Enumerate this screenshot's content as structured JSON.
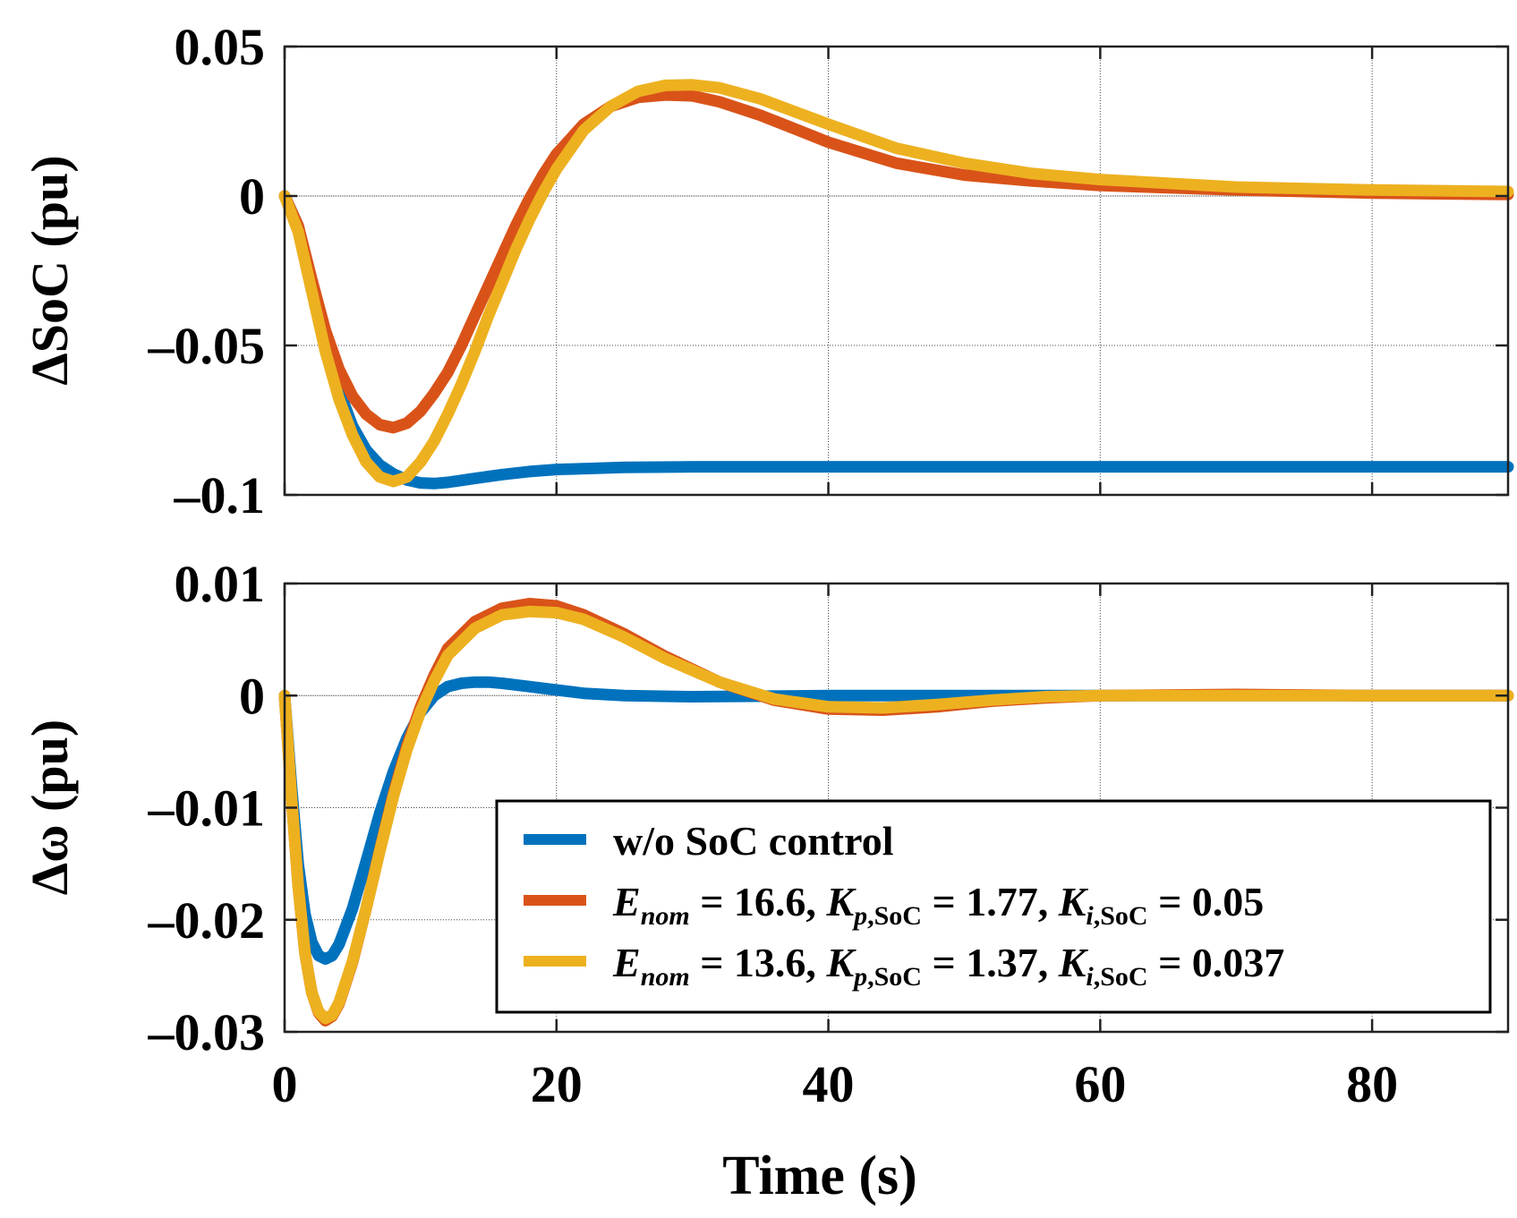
{
  "chart_data": [
    {
      "type": "line",
      "title": "",
      "ylabel": "ΔSoC (pu)",
      "xlabel": "",
      "xlim": [
        0,
        90
      ],
      "ylim": [
        -0.1,
        0.05
      ],
      "yticks": [
        0.05,
        0,
        -0.05,
        -0.1
      ],
      "ytick_labels": [
        "0.05",
        "0",
        "–0.05",
        "–0.1"
      ],
      "xticks": [
        0,
        20,
        40,
        60,
        80
      ],
      "grid": true,
      "series": [
        {
          "name": "w/o SoC control",
          "color": "#0072BD",
          "points": [
            [
              0,
              0
            ],
            [
              1,
              -0.01
            ],
            [
              2,
              -0.03
            ],
            [
              3,
              -0.05
            ],
            [
              4,
              -0.065
            ],
            [
              5,
              -0.077
            ],
            [
              6,
              -0.085
            ],
            [
              7,
              -0.09
            ],
            [
              8,
              -0.093
            ],
            [
              9,
              -0.095
            ],
            [
              10,
              -0.096
            ],
            [
              11,
              -0.0962
            ],
            [
              12,
              -0.0958
            ],
            [
              14,
              -0.0945
            ],
            [
              16,
              -0.0932
            ],
            [
              18,
              -0.0922
            ],
            [
              20,
              -0.0915
            ],
            [
              25,
              -0.0908
            ],
            [
              30,
              -0.0906
            ],
            [
              40,
              -0.0906
            ],
            [
              60,
              -0.0906
            ],
            [
              80,
              -0.0906
            ],
            [
              90,
              -0.0906
            ]
          ]
        },
        {
          "name": "E_nom = 16.6, K_p,SoC = 1.77, K_i,SoC = 0.05",
          "color": "#D95319",
          "points": [
            [
              0,
              0
            ],
            [
              1,
              -0.01
            ],
            [
              2,
              -0.028
            ],
            [
              3,
              -0.045
            ],
            [
              4,
              -0.058
            ],
            [
              5,
              -0.067
            ],
            [
              6,
              -0.073
            ],
            [
              7,
              -0.0765
            ],
            [
              8,
              -0.0775
            ],
            [
              9,
              -0.076
            ],
            [
              10,
              -0.072
            ],
            [
              11,
              -0.066
            ],
            [
              12,
              -0.059
            ],
            [
              13,
              -0.05
            ],
            [
              14,
              -0.04
            ],
            [
              15,
              -0.03
            ],
            [
              16,
              -0.02
            ],
            [
              17,
              -0.01
            ],
            [
              18,
              -0.001
            ],
            [
              19,
              0.007
            ],
            [
              20,
              0.014
            ],
            [
              22,
              0.024
            ],
            [
              24,
              0.03
            ],
            [
              26,
              0.033
            ],
            [
              28,
              0.0338
            ],
            [
              30,
              0.0335
            ],
            [
              32,
              0.0315
            ],
            [
              35,
              0.027
            ],
            [
              40,
              0.018
            ],
            [
              45,
              0.011
            ],
            [
              50,
              0.007
            ],
            [
              55,
              0.005
            ],
            [
              60,
              0.0035
            ],
            [
              70,
              0.002
            ],
            [
              80,
              0.001
            ],
            [
              90,
              0.0005
            ]
          ]
        },
        {
          "name": "E_nom = 13.6, K_p,SoC = 1.37, K_i,SoC = 0.037",
          "color": "#EDB120",
          "points": [
            [
              0,
              0
            ],
            [
              1,
              -0.012
            ],
            [
              2,
              -0.032
            ],
            [
              3,
              -0.052
            ],
            [
              4,
              -0.068
            ],
            [
              5,
              -0.08
            ],
            [
              6,
              -0.089
            ],
            [
              7,
              -0.094
            ],
            [
              8,
              -0.0955
            ],
            [
              9,
              -0.094
            ],
            [
              10,
              -0.089
            ],
            [
              11,
              -0.082
            ],
            [
              12,
              -0.073
            ],
            [
              13,
              -0.063
            ],
            [
              14,
              -0.052
            ],
            [
              15,
              -0.04
            ],
            [
              16,
              -0.029
            ],
            [
              17,
              -0.018
            ],
            [
              18,
              -0.008
            ],
            [
              19,
              0.001
            ],
            [
              20,
              0.009
            ],
            [
              22,
              0.022
            ],
            [
              24,
              0.03
            ],
            [
              26,
              0.035
            ],
            [
              28,
              0.037
            ],
            [
              30,
              0.0372
            ],
            [
              32,
              0.0362
            ],
            [
              35,
              0.0325
            ],
            [
              40,
              0.024
            ],
            [
              45,
              0.016
            ],
            [
              50,
              0.011
            ],
            [
              55,
              0.0075
            ],
            [
              60,
              0.0055
            ],
            [
              70,
              0.003
            ],
            [
              80,
              0.002
            ],
            [
              90,
              0.0015
            ]
          ]
        }
      ]
    },
    {
      "type": "line",
      "title": "",
      "ylabel": "Δω (pu)",
      "xlabel": "Time (s)",
      "xlim": [
        0,
        90
      ],
      "ylim": [
        -0.03,
        0.01
      ],
      "yticks": [
        0.01,
        0,
        -0.01,
        -0.02,
        -0.03
      ],
      "ytick_labels": [
        "0.01",
        "0",
        "–0.01",
        "–0.02",
        "–0.03"
      ],
      "xticks": [
        0,
        20,
        40,
        60,
        80
      ],
      "xtick_labels": [
        "0",
        "20",
        "40",
        "60",
        "80"
      ],
      "grid": true,
      "legend_position": "bottom-right",
      "series": [
        {
          "name": "w/o SoC control",
          "color": "#0072BD",
          "points": [
            [
              0,
              0
            ],
            [
              0.5,
              -0.008
            ],
            [
              1,
              -0.015
            ],
            [
              1.5,
              -0.0195
            ],
            [
              2,
              -0.022
            ],
            [
              2.5,
              -0.0232
            ],
            [
              3,
              -0.0235
            ],
            [
              3.5,
              -0.0232
            ],
            [
              4,
              -0.0222
            ],
            [
              5,
              -0.019
            ],
            [
              6,
              -0.0148
            ],
            [
              7,
              -0.0105
            ],
            [
              8,
              -0.0068
            ],
            [
              9,
              -0.0038
            ],
            [
              10,
              -0.0015
            ],
            [
              11,
              0
            ],
            [
              12,
              0.0008
            ],
            [
              13,
              0.0011
            ],
            [
              14,
              0.0012
            ],
            [
              15,
              0.0012
            ],
            [
              16,
              0.0011
            ],
            [
              18,
              0.0008
            ],
            [
              20,
              0.0005
            ],
            [
              22,
              0.0002
            ],
            [
              25,
              0
            ],
            [
              30,
              -0.0001
            ],
            [
              40,
              0
            ],
            [
              60,
              0
            ],
            [
              90,
              0
            ]
          ]
        },
        {
          "name": "E_nom = 16.6, K_p,SoC = 1.77, K_i,SoC = 0.05",
          "color": "#D95319",
          "points": [
            [
              0,
              0
            ],
            [
              0.5,
              -0.009
            ],
            [
              1,
              -0.017
            ],
            [
              1.5,
              -0.023
            ],
            [
              2,
              -0.0265
            ],
            [
              2.5,
              -0.0283
            ],
            [
              3,
              -0.029
            ],
            [
              3.5,
              -0.0286
            ],
            [
              4,
              -0.0275
            ],
            [
              5,
              -0.0238
            ],
            [
              6,
              -0.019
            ],
            [
              7,
              -0.0138
            ],
            [
              8,
              -0.0088
            ],
            [
              9,
              -0.0045
            ],
            [
              10,
              -0.001
            ],
            [
              11,
              0.0018
            ],
            [
              12,
              0.0042
            ],
            [
              14,
              0.0066
            ],
            [
              16,
              0.0078
            ],
            [
              18,
              0.0082
            ],
            [
              20,
              0.008
            ],
            [
              22,
              0.0072
            ],
            [
              25,
              0.0055
            ],
            [
              28,
              0.0035
            ],
            [
              32,
              0.0012
            ],
            [
              36,
              -0.0004
            ],
            [
              40,
              -0.0012
            ],
            [
              44,
              -0.0013
            ],
            [
              48,
              -0.001
            ],
            [
              52,
              -0.0005
            ],
            [
              56,
              -0.0002
            ],
            [
              60,
              0
            ],
            [
              70,
              0.0001
            ],
            [
              80,
              0
            ],
            [
              90,
              0
            ]
          ]
        },
        {
          "name": "E_nom = 13.6, K_p,SoC = 1.37, K_i,SoC = 0.037",
          "color": "#EDB120",
          "points": [
            [
              0,
              0
            ],
            [
              0.5,
              -0.009
            ],
            [
              1,
              -0.017
            ],
            [
              1.5,
              -0.023
            ],
            [
              2,
              -0.0265
            ],
            [
              2.5,
              -0.0282
            ],
            [
              3,
              -0.0288
            ],
            [
              3.5,
              -0.0285
            ],
            [
              4,
              -0.0274
            ],
            [
              5,
              -0.0237
            ],
            [
              6,
              -0.019
            ],
            [
              7,
              -0.0139
            ],
            [
              8,
              -0.009
            ],
            [
              9,
              -0.0048
            ],
            [
              10,
              -0.0014
            ],
            [
              11,
              0.0013
            ],
            [
              12,
              0.0036
            ],
            [
              14,
              0.006
            ],
            [
              16,
              0.0072
            ],
            [
              18,
              0.0075
            ],
            [
              20,
              0.0074
            ],
            [
              22,
              0.0068
            ],
            [
              25,
              0.0052
            ],
            [
              28,
              0.0033
            ],
            [
              32,
              0.0012
            ],
            [
              36,
              -0.0003
            ],
            [
              40,
              -0.001
            ],
            [
              44,
              -0.0011
            ],
            [
              48,
              -0.0008
            ],
            [
              52,
              -0.0004
            ],
            [
              56,
              -0.0001
            ],
            [
              60,
              0
            ],
            [
              70,
              0
            ],
            [
              80,
              0
            ],
            [
              90,
              0
            ]
          ]
        }
      ]
    }
  ],
  "legend": [
    {
      "plain": "w/o SoC control"
    },
    {
      "E": "E",
      "E_sub": "nom",
      "a": " = 16.6, ",
      "K1": "K",
      "K1_sub_i": "p",
      "K1_sub": ",SoC",
      "b": " = 1.77, ",
      "K2": "K",
      "K2_sub_i": "i",
      "K2_sub": ",SoC",
      "c": " = 0.05"
    },
    {
      "E": "E",
      "E_sub": "nom",
      "a": " = 13.6, ",
      "K1": "K",
      "K1_sub_i": "p",
      "K1_sub": ",SoC",
      "b": " = 1.37, ",
      "K2": "K",
      "K2_sub_i": "i",
      "K2_sub": ",SoC",
      "c": " = 0.037"
    }
  ]
}
